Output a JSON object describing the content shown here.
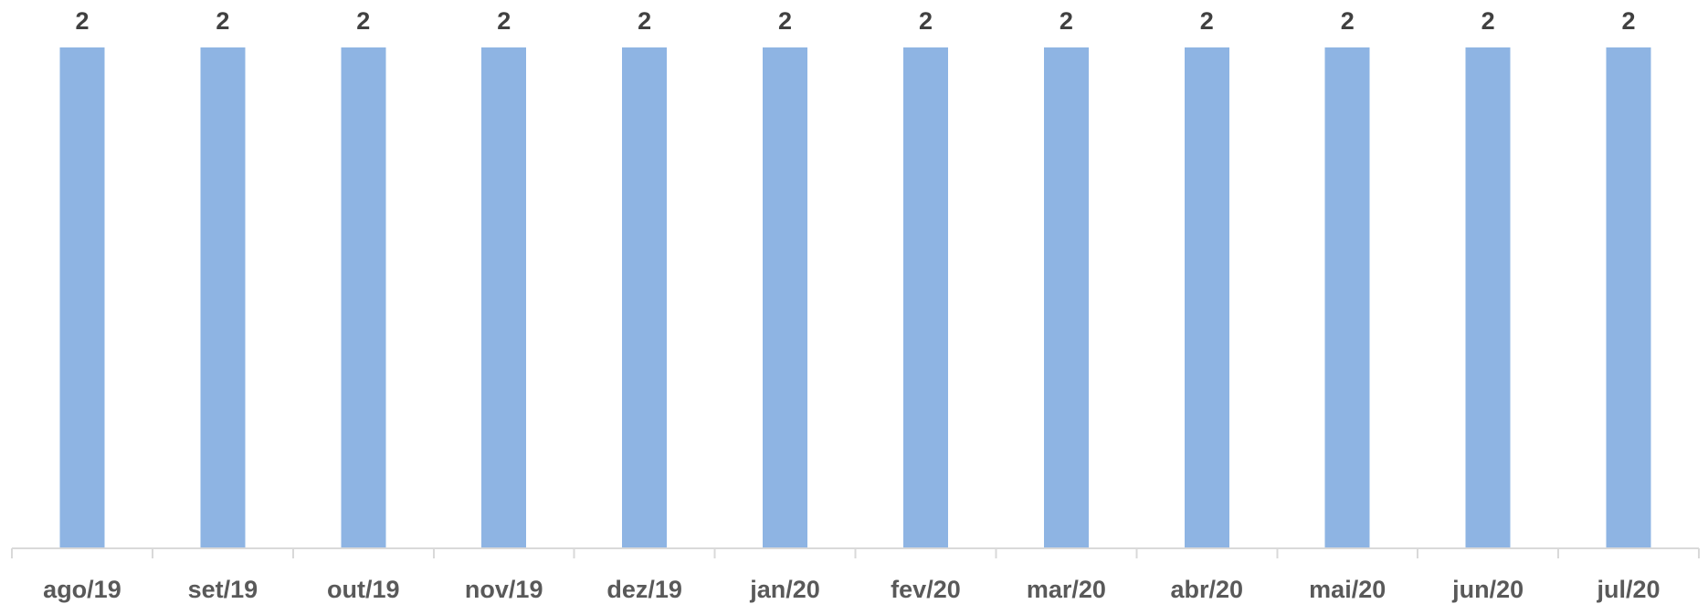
{
  "chart_data": {
    "type": "bar",
    "title": "",
    "xlabel": "",
    "ylabel": "",
    "categories": [
      "ago/19",
      "set/19",
      "out/19",
      "nov/19",
      "dez/19",
      "jan/20",
      "fev/20",
      "mar/20",
      "abr/20",
      "mai/20",
      "jun/20",
      "jul/20"
    ],
    "values": [
      2,
      2,
      2,
      2,
      2,
      2,
      2,
      2,
      2,
      2,
      2,
      2
    ],
    "ylim": [
      0,
      2
    ],
    "grid": false,
    "legend": "none",
    "data_labels": true,
    "colors": {
      "bar": "#8eb4e3",
      "value_label": "#404040",
      "category_label": "#595959",
      "axis": "#d9d9d9"
    }
  }
}
